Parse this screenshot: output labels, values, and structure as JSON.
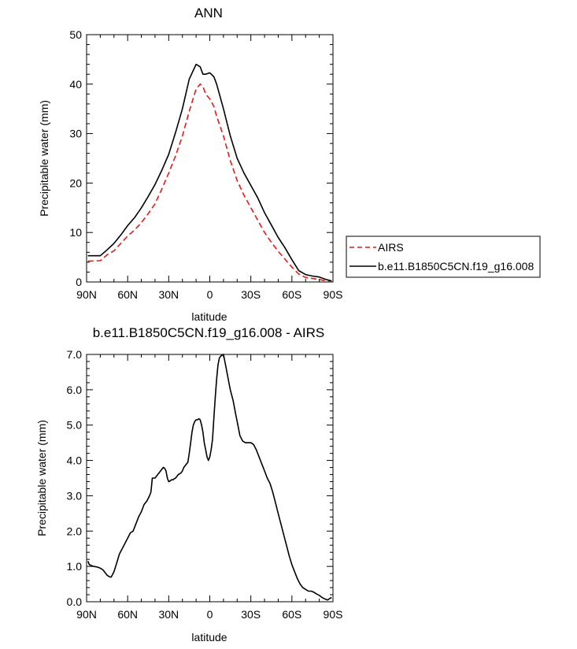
{
  "chart_data": [
    {
      "type": "line",
      "title": "ANN",
      "xlabel": "latitude",
      "ylabel": "Precipitable water (mm)",
      "xlim": [
        90,
        -90
      ],
      "ylim": [
        0,
        50
      ],
      "x_ticks": [
        {
          "value": 90,
          "label": "90N"
        },
        {
          "value": 60,
          "label": "60N"
        },
        {
          "value": 30,
          "label": "30N"
        },
        {
          "value": 0,
          "label": "0"
        },
        {
          "value": -30,
          "label": "30S"
        },
        {
          "value": -60,
          "label": "60S"
        },
        {
          "value": -90,
          "label": "90S"
        }
      ],
      "y_ticks": [
        {
          "value": 0,
          "label": "0"
        },
        {
          "value": 10,
          "label": "10"
        },
        {
          "value": 20,
          "label": "20"
        },
        {
          "value": 30,
          "label": "30"
        },
        {
          "value": 40,
          "label": "40"
        },
        {
          "value": 50,
          "label": "50"
        }
      ],
      "legend_position": "right",
      "series": [
        {
          "name": "AIRS",
          "color": "#e41a1c",
          "dash": "dashed",
          "x": [
            89,
            80,
            75,
            70,
            65,
            60,
            55,
            50,
            45,
            40,
            35,
            30,
            25,
            20,
            15,
            10,
            7,
            5,
            3,
            0,
            -3,
            -5,
            -10,
            -15,
            -20,
            -25,
            -30,
            -35,
            -40,
            -45,
            -50,
            -55,
            -60,
            -65,
            -70,
            -75,
            -80,
            -85,
            -89
          ],
          "y": [
            4.2,
            4.3,
            5.5,
            6.3,
            7.8,
            9.3,
            10.5,
            12.0,
            13.8,
            15.8,
            18.8,
            22.0,
            25.5,
            29.5,
            34.5,
            39.0,
            40.0,
            39.5,
            38.0,
            37.0,
            35.5,
            33.5,
            29.5,
            24.5,
            20.5,
            17.5,
            15.0,
            12.5,
            10.0,
            8.0,
            6.2,
            4.6,
            3.0,
            1.6,
            0.9,
            0.7,
            0.5,
            0.2,
            0.1
          ]
        },
        {
          "name": "b.e11.B1850C5CN.f19_g16.008",
          "color": "#000000",
          "dash": "solid",
          "x": [
            89,
            80,
            75,
            70,
            65,
            60,
            55,
            50,
            45,
            40,
            35,
            30,
            25,
            20,
            15,
            10,
            7,
            5,
            3,
            0,
            -3,
            -5,
            -10,
            -15,
            -20,
            -25,
            -30,
            -35,
            -40,
            -45,
            -50,
            -55,
            -60,
            -65,
            -70,
            -75,
            -80,
            -85,
            -89
          ],
          "y": [
            5.3,
            5.3,
            6.5,
            7.8,
            9.5,
            11.4,
            13.0,
            15.0,
            17.3,
            19.7,
            22.6,
            25.8,
            30.2,
            35.0,
            41.0,
            44.0,
            43.5,
            42.0,
            42.0,
            42.3,
            41.5,
            40.0,
            35.0,
            29.5,
            25.0,
            22.0,
            19.5,
            17.0,
            14.0,
            11.5,
            9.0,
            6.9,
            4.5,
            2.3,
            1.5,
            1.2,
            1.0,
            0.5,
            0.2
          ]
        }
      ]
    },
    {
      "type": "line",
      "title": "b.e11.B1850C5CN.f19_g16.008 - AIRS",
      "xlabel": "latitude",
      "ylabel": "Precipitable water (mm)",
      "xlim": [
        90,
        -90
      ],
      "ylim": [
        0,
        7
      ],
      "x_ticks": [
        {
          "value": 90,
          "label": "90N"
        },
        {
          "value": 60,
          "label": "60N"
        },
        {
          "value": 30,
          "label": "30N"
        },
        {
          "value": 0,
          "label": "0"
        },
        {
          "value": -30,
          "label": "30S"
        },
        {
          "value": -60,
          "label": "60S"
        },
        {
          "value": -90,
          "label": "90S"
        }
      ],
      "y_ticks": [
        {
          "value": 0,
          "label": "0.0"
        },
        {
          "value": 1,
          "label": "1.0"
        },
        {
          "value": 2,
          "label": "2.0"
        },
        {
          "value": 3,
          "label": "3.0"
        },
        {
          "value": 4,
          "label": "4.0"
        },
        {
          "value": 5,
          "label": "5.0"
        },
        {
          "value": 6,
          "label": "6.0"
        },
        {
          "value": 7,
          "label": "7.0"
        }
      ],
      "series": [
        {
          "name": "b.e11.B1850C5CN.f19_g16.008 - AIRS",
          "color": "#000000",
          "dash": "solid",
          "x": [
            89,
            88,
            85,
            82,
            80,
            78,
            75,
            73,
            72,
            70,
            68,
            66,
            64,
            62,
            60,
            58,
            56,
            54,
            52,
            50,
            48,
            46,
            44,
            43,
            42,
            40,
            38,
            36,
            35,
            34,
            33,
            32,
            31,
            30,
            29,
            28,
            27,
            26,
            25,
            24,
            23,
            22,
            21,
            20,
            19,
            18,
            17,
            16,
            15,
            14,
            13,
            12,
            11,
            10,
            9,
            8,
            7,
            6,
            5,
            4,
            3,
            2,
            1,
            0,
            -1,
            -2,
            -3,
            -4,
            -5,
            -6,
            -7,
            -8,
            -10,
            -12,
            -14,
            -15,
            -16,
            -17,
            -18,
            -19,
            -20,
            -22,
            -24,
            -26,
            -28,
            -30,
            -32,
            -34,
            -36,
            -38,
            -40,
            -42,
            -44,
            -46,
            -48,
            -50,
            -52,
            -54,
            -56,
            -58,
            -60,
            -62,
            -64,
            -66,
            -68,
            -70,
            -72,
            -74,
            -76,
            -78,
            -80,
            -82,
            -84,
            -86,
            -88,
            -89
          ],
          "y": [
            1.15,
            1.05,
            1.0,
            0.98,
            0.95,
            0.9,
            0.75,
            0.7,
            0.7,
            0.85,
            1.1,
            1.35,
            1.5,
            1.65,
            1.8,
            1.95,
            2.0,
            2.2,
            2.4,
            2.55,
            2.75,
            2.85,
            3.0,
            3.1,
            3.5,
            3.5,
            3.6,
            3.7,
            3.75,
            3.8,
            3.78,
            3.7,
            3.5,
            3.4,
            3.42,
            3.45,
            3.45,
            3.48,
            3.5,
            3.55,
            3.6,
            3.62,
            3.65,
            3.7,
            3.8,
            3.85,
            3.9,
            3.95,
            4.2,
            4.5,
            4.8,
            5.0,
            5.1,
            5.15,
            5.15,
            5.18,
            5.15,
            5.0,
            4.8,
            4.5,
            4.3,
            4.1,
            4.0,
            4.1,
            4.3,
            4.6,
            5.2,
            5.8,
            6.3,
            6.7,
            6.9,
            6.95,
            7.0,
            6.6,
            6.2,
            6.0,
            5.85,
            5.7,
            5.5,
            5.3,
            5.1,
            4.7,
            4.55,
            4.5,
            4.5,
            4.5,
            4.45,
            4.3,
            4.1,
            3.9,
            3.7,
            3.5,
            3.35,
            3.1,
            2.8,
            2.5,
            2.2,
            1.9,
            1.6,
            1.3,
            1.05,
            0.85,
            0.65,
            0.5,
            0.4,
            0.35,
            0.3,
            0.3,
            0.27,
            0.22,
            0.18,
            0.12,
            0.08,
            0.05,
            0.1,
            0.12
          ]
        }
      ]
    }
  ]
}
